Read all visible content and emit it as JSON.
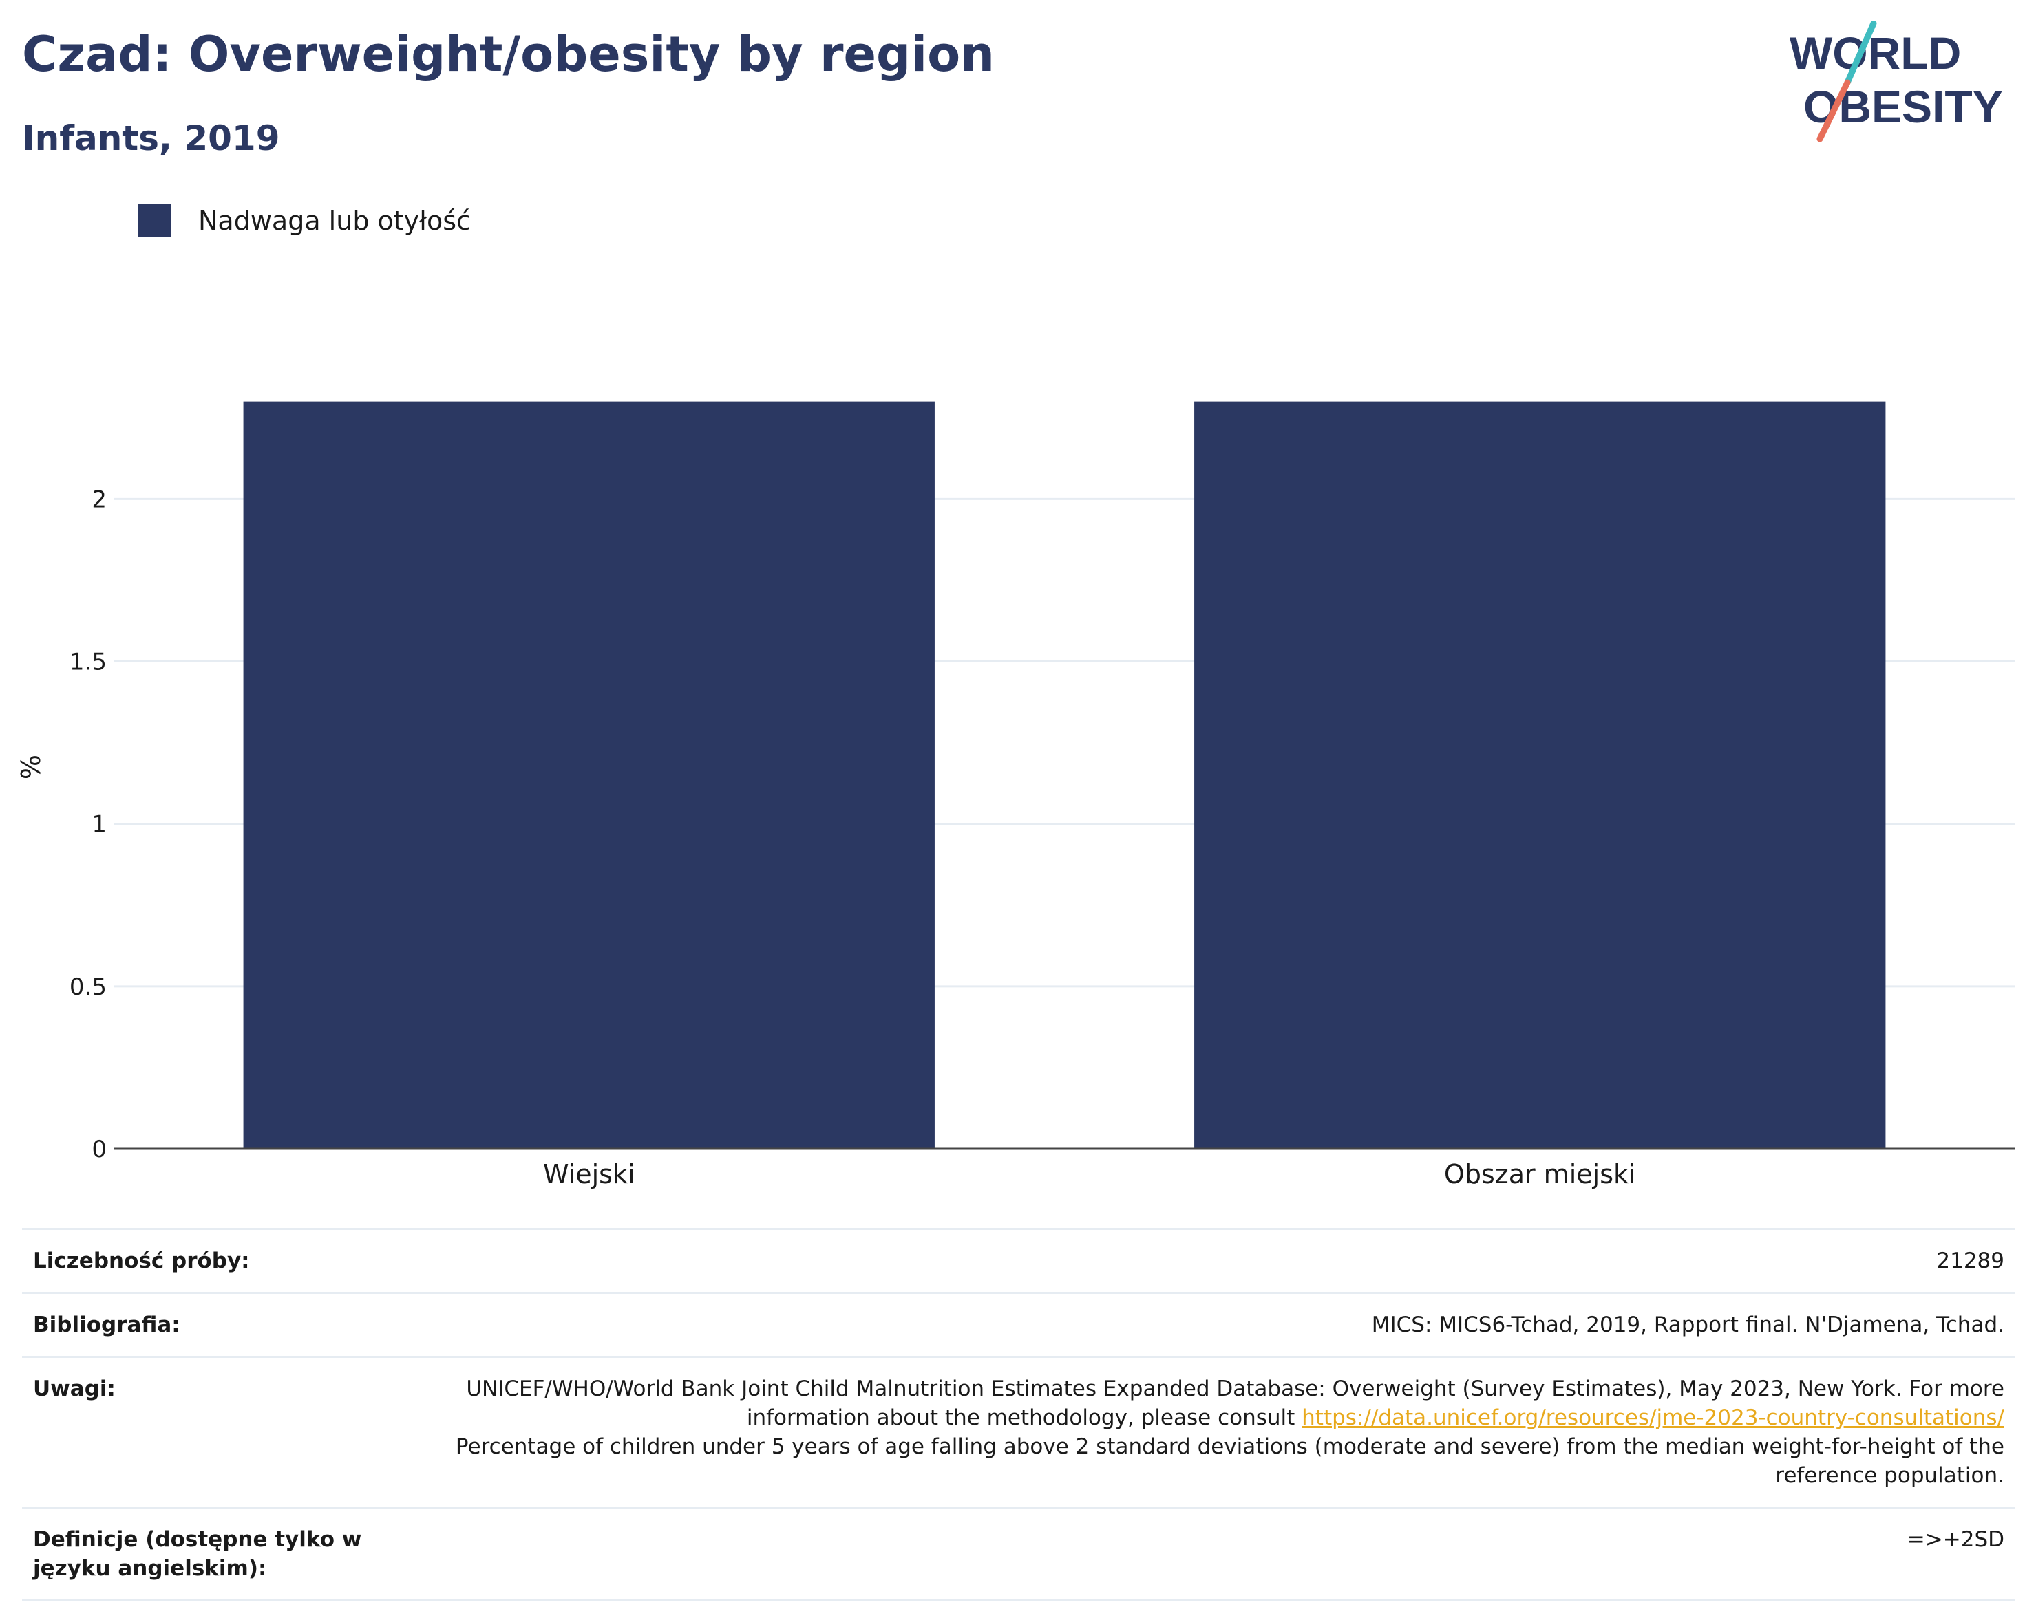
{
  "header": {
    "title": "Czad: Overweight/obesity by region",
    "subtitle": "Infants, 2019"
  },
  "logo": {
    "line1": "WORLD",
    "line2": "OBESITY",
    "colors": {
      "text": "#2b3862",
      "slash_teal": "#3fbcc0",
      "slash_coral": "#e76f5a"
    }
  },
  "legend": {
    "label": "Nadwaga lub otyłość",
    "color": "#2b3862"
  },
  "chart_data": {
    "type": "bar",
    "categories": [
      "Wiejski",
      "Obszar miejski"
    ],
    "series": [
      {
        "name": "Nadwaga lub otyłość",
        "values": [
          2.3,
          2.3
        ],
        "color": "#2b3862"
      }
    ],
    "title": "Czad: Overweight/obesity by region",
    "subtitle": "Infants, 2019",
    "xlabel": "",
    "ylabel": "%",
    "ylim": [
      0,
      2.35
    ],
    "yticks": [
      0,
      0.5,
      1,
      1.5,
      2
    ],
    "ytick_labels": [
      "0",
      "0.5",
      "1",
      "1.5",
      "2"
    ],
    "grid": true,
    "legend_position": "top-left"
  },
  "info": {
    "sample_size": {
      "label": "Liczebność próby:",
      "value": "21289"
    },
    "bibliography": {
      "label": "Bibliografia:",
      "value": "MICS: MICS6-Tchad, 2019, Rapport final. N'Djamena, Tchad."
    },
    "notes": {
      "label": "Uwagi:",
      "text1": "UNICEF/WHO/World Bank Joint Child Malnutrition Estimates Expanded Database: Overweight (Survey Estimates), May 2023, New York. For more information about the methodology, please consult",
      "link": "https://data.unicef.org/resources/jme-2023-country-consultations/",
      "text2": "Percentage of children under 5 years of age falling above 2 standard deviations (moderate and severe) from the median weight-for-height of the reference population."
    },
    "definitions": {
      "label": "Definicje (dostępne tylko w języku angielskim):",
      "value": "=>+2SD"
    }
  }
}
